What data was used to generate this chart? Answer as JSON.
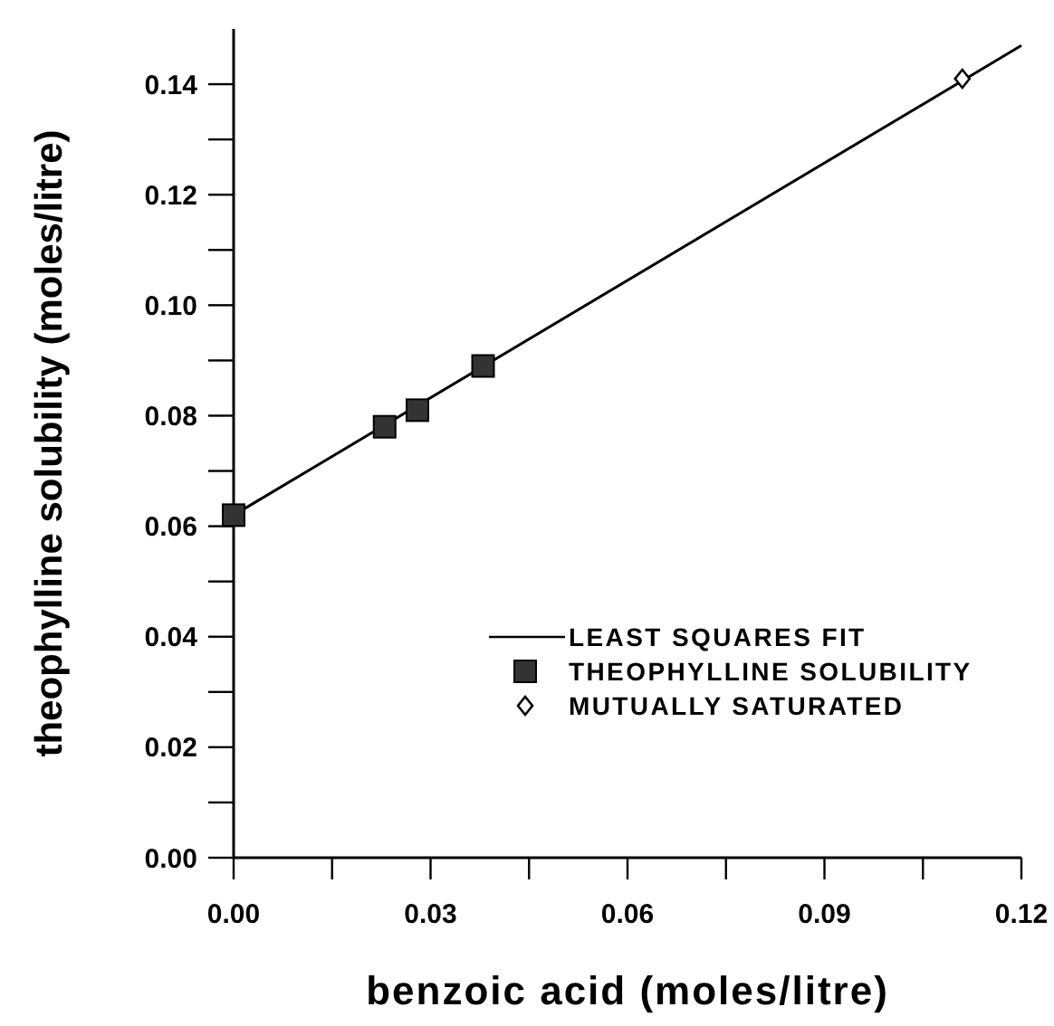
{
  "chart_data": {
    "type": "scatter",
    "xlabel": "benzoic acid  (moles/litre)",
    "ylabel": "theophylline solubility  (moles/litre)",
    "xlim": [
      0,
      0.12
    ],
    "ylim": [
      0,
      0.15
    ],
    "xticks": [
      {
        "value": 0,
        "label": "0.00"
      },
      {
        "value": 0.015,
        "label": null
      },
      {
        "value": 0.03,
        "label": "0.03"
      },
      {
        "value": 0.045,
        "label": null
      },
      {
        "value": 0.06,
        "label": "0.06"
      },
      {
        "value": 0.075,
        "label": null
      },
      {
        "value": 0.09,
        "label": "0.09"
      },
      {
        "value": 0.105,
        "label": null
      },
      {
        "value": 0.12,
        "label": "0.12"
      }
    ],
    "yticks": [
      {
        "value": 0,
        "label": "0.00"
      },
      {
        "value": 0.01,
        "label": null
      },
      {
        "value": 0.02,
        "label": "0.02"
      },
      {
        "value": 0.03,
        "label": null
      },
      {
        "value": 0.04,
        "label": "0.04"
      },
      {
        "value": 0.05,
        "label": null
      },
      {
        "value": 0.06,
        "label": "0.06"
      },
      {
        "value": 0.07,
        "label": null
      },
      {
        "value": 0.08,
        "label": "0.08"
      },
      {
        "value": 0.09,
        "label": null
      },
      {
        "value": 0.1,
        "label": "0.10"
      },
      {
        "value": 0.11,
        "label": null
      },
      {
        "value": 0.12,
        "label": "0.12"
      },
      {
        "value": 0.13,
        "label": null
      },
      {
        "value": 0.14,
        "label": "0.14"
      }
    ],
    "legend": "bottom right",
    "series": [
      {
        "name": "LEAST SQUARES FIT",
        "type": "line",
        "marker": "none",
        "line_style": "solid",
        "color": "#000000",
        "x": [
          0,
          0.12
        ],
        "values": [
          0.062,
          0.147
        ]
      },
      {
        "name": "THEOPHYLLINE SOLUBILITY",
        "marker": "square",
        "color": "#333333",
        "x": [
          0,
          0.023,
          0.028,
          0.038
        ],
        "values": [
          0.062,
          0.078,
          0.081,
          0.089
        ]
      },
      {
        "name": "MUTUALLY SATURATED",
        "marker": "diamond",
        "color": "#000000",
        "x": [
          0.111
        ],
        "values": [
          0.141
        ]
      }
    ]
  }
}
